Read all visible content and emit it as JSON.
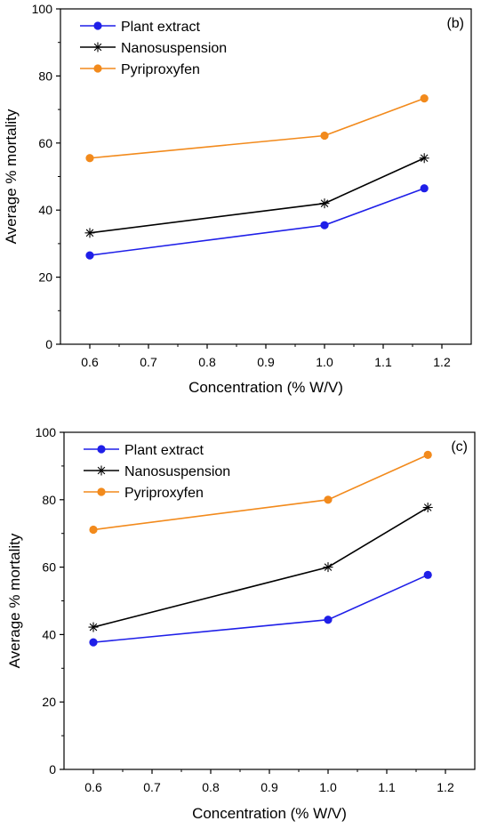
{
  "chart_data": [
    {
      "type": "line",
      "panel_label": "(b)",
      "xlabel": "Concentration (% W/V)",
      "ylabel": "Average % mortality",
      "xlim": [
        0.55,
        1.25
      ],
      "ylim": [
        0,
        100
      ],
      "xticks": [
        "0.6",
        "0.7",
        "0.8",
        "0.9",
        "1.0",
        "1.1",
        "1.2"
      ],
      "yticks": [
        "0",
        "20",
        "40",
        "60",
        "80",
        "100"
      ],
      "legend_position": "top-left",
      "grid": false,
      "x": [
        0.6,
        1.0,
        1.17
      ],
      "series": [
        {
          "name": "Plant extract",
          "marker": "circle",
          "color": "#1f1fe8",
          "values": [
            26.5,
            35.5,
            46.5
          ]
        },
        {
          "name": "Nanosuspension",
          "marker": "asterisk",
          "color": "#000000",
          "values": [
            33.2,
            42.0,
            55.5
          ]
        },
        {
          "name": "Pyriproxyfen",
          "marker": "circle",
          "color": "#f28a1c",
          "values": [
            55.5,
            62.2,
            73.3
          ]
        }
      ]
    },
    {
      "type": "line",
      "panel_label": "(c)",
      "xlabel": "Concentration (% W/V)",
      "ylabel": "Average % mortality",
      "xlim": [
        0.55,
        1.25
      ],
      "ylim": [
        0,
        100
      ],
      "xticks": [
        "0.6",
        "0.7",
        "0.8",
        "0.9",
        "1.0",
        "1.1",
        "1.2"
      ],
      "yticks": [
        "0",
        "20",
        "40",
        "60",
        "80",
        "100"
      ],
      "legend_position": "top-left",
      "grid": false,
      "x": [
        0.6,
        1.0,
        1.17
      ],
      "series": [
        {
          "name": "Plant extract",
          "marker": "circle",
          "color": "#1f1fe8",
          "values": [
            37.7,
            44.4,
            57.7
          ]
        },
        {
          "name": "Nanosuspension",
          "marker": "asterisk",
          "color": "#000000",
          "values": [
            42.2,
            60.0,
            77.7
          ]
        },
        {
          "name": "Pyriproxyfen",
          "marker": "circle",
          "color": "#f28a1c",
          "values": [
            71.1,
            80.0,
            93.3
          ]
        }
      ]
    }
  ]
}
